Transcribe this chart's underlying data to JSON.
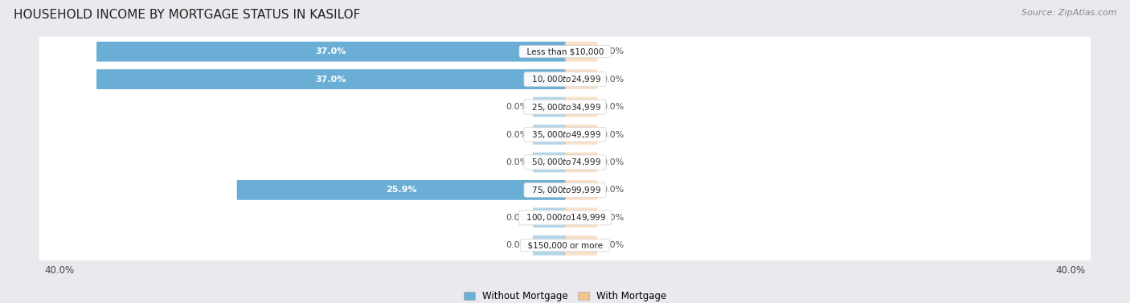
{
  "title": "HOUSEHOLD INCOME BY MORTGAGE STATUS IN KASILOF",
  "source": "Source: ZipAtlas.com",
  "categories": [
    "Less than $10,000",
    "$10,000 to $24,999",
    "$25,000 to $34,999",
    "$35,000 to $49,999",
    "$50,000 to $74,999",
    "$75,000 to $99,999",
    "$100,000 to $149,999",
    "$150,000 or more"
  ],
  "without_mortgage": [
    37.0,
    37.0,
    0.0,
    0.0,
    0.0,
    25.9,
    0.0,
    0.0
  ],
  "with_mortgage": [
    0.0,
    0.0,
    0.0,
    0.0,
    0.0,
    0.0,
    0.0,
    0.0
  ],
  "max_value": 40.0,
  "stub_size": 2.5,
  "color_without": "#6aaed6",
  "color_with": "#f4c490",
  "bg_color": "#eaeaee",
  "row_bg_color": "#ffffff",
  "title_fontsize": 11,
  "label_fontsize": 8,
  "cat_fontsize": 7.5,
  "axis_label_fontsize": 8.5,
  "legend_fontsize": 8.5,
  "source_fontsize": 8
}
